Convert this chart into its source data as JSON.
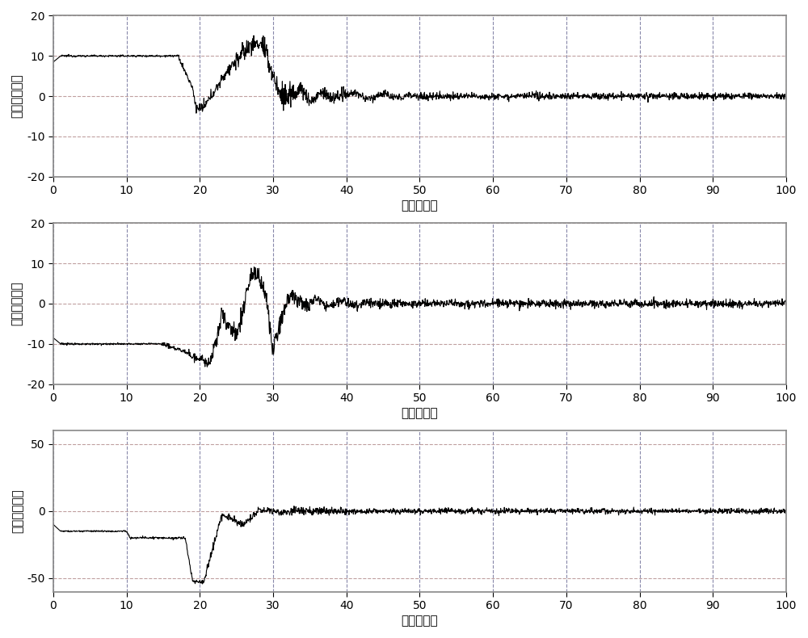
{
  "fig_width": 10.0,
  "fig_height": 7.9,
  "dpi": 100,
  "subplots": [
    {
      "ylabel": "滚转角（度）",
      "xlabel": "时间（秒）",
      "ylim": [
        -20,
        20
      ],
      "xlim": [
        0,
        100
      ],
      "yticks": [
        -20,
        -10,
        0,
        10,
        20
      ],
      "xticks": [
        0,
        10,
        20,
        30,
        40,
        50,
        60,
        70,
        80,
        90,
        100
      ]
    },
    {
      "ylabel": "俧仰角（度）",
      "xlabel": "时间（秒）",
      "ylim": [
        -20,
        20
      ],
      "xlim": [
        0,
        100
      ],
      "yticks": [
        -20,
        -10,
        0,
        10,
        20
      ],
      "xticks": [
        0,
        10,
        20,
        30,
        40,
        50,
        60,
        70,
        80,
        90,
        100
      ]
    },
    {
      "ylabel": "偏航角（度）",
      "xlabel": "时间（秒）",
      "ylim": [
        -60,
        60
      ],
      "xlim": [
        0,
        100
      ],
      "yticks": [
        -50,
        0,
        50
      ],
      "xticks": [
        0,
        10,
        20,
        30,
        40,
        50,
        60,
        70,
        80,
        90,
        100
      ]
    }
  ],
  "line_color": "#000000",
  "h_grid_color": "#c0a0a0",
  "v_grid_color": "#8888aa",
  "grid_linestyle": "--",
  "background_color": "#ffffff",
  "spine_color": "#888888",
  "border_color": "#888888"
}
